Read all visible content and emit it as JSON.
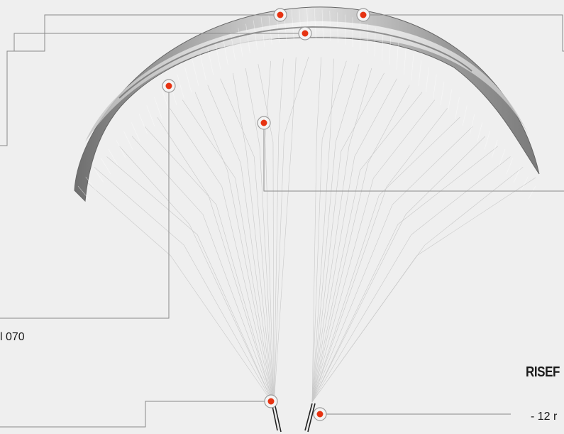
{
  "labels": {
    "partial_code": "l 070",
    "risers_heading": "RISEF",
    "riser_note": "- 12 r"
  },
  "colors": {
    "background": "#efefef",
    "callout_line": "#8a8a8a",
    "hotspot_dot": "#e63312",
    "hotspot_ring": "#9a9a9a",
    "suspension_line": "#c8c8c8"
  },
  "hotspots": [
    {
      "name": "hotspot-top-center"
    },
    {
      "name": "hotspot-top-right"
    },
    {
      "name": "hotspot-upper-middle"
    },
    {
      "name": "hotspot-left-cell"
    },
    {
      "name": "hotspot-center-lines"
    },
    {
      "name": "hotspot-left-riser"
    },
    {
      "name": "hotspot-right-riser"
    }
  ]
}
